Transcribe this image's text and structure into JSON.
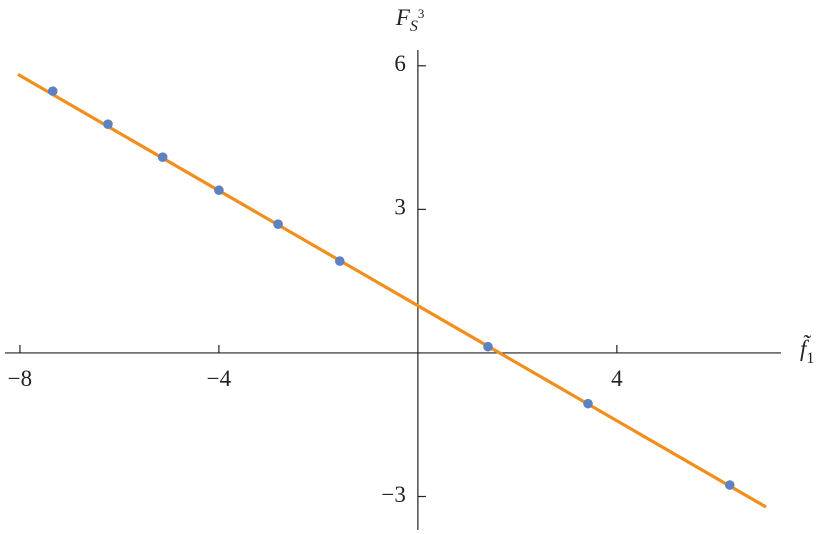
{
  "chart_data": {
    "type": "scatter",
    "x_label": {
      "base": "f̃",
      "sub": "1"
    },
    "y_label": {
      "base": "F",
      "sub": "S",
      "sup": "3"
    },
    "x": [
      -7.34,
      -6.23,
      -5.13,
      -4.0,
      -2.81,
      -1.57,
      1.41,
      3.42,
      6.27
    ],
    "values": [
      5.47,
      4.78,
      4.09,
      3.4,
      2.69,
      1.92,
      0.13,
      -1.06,
      -2.76
    ],
    "color": "#5e81c1",
    "line": {
      "x": [
        -8.04,
        7.0
      ],
      "values": [
        5.82,
        -3.22
      ],
      "color": "#f28e1c"
    },
    "xlim": [
      -8.3,
      7.3
    ],
    "ylim": [
      -3.7,
      6.33
    ],
    "xticks": [
      {
        "value": -8,
        "label": "−8"
      },
      {
        "value": -4,
        "label": "−4"
      },
      4
    ],
    "yticks": [
      {
        "value": -3,
        "label": "−3"
      },
      3,
      6
    ]
  }
}
